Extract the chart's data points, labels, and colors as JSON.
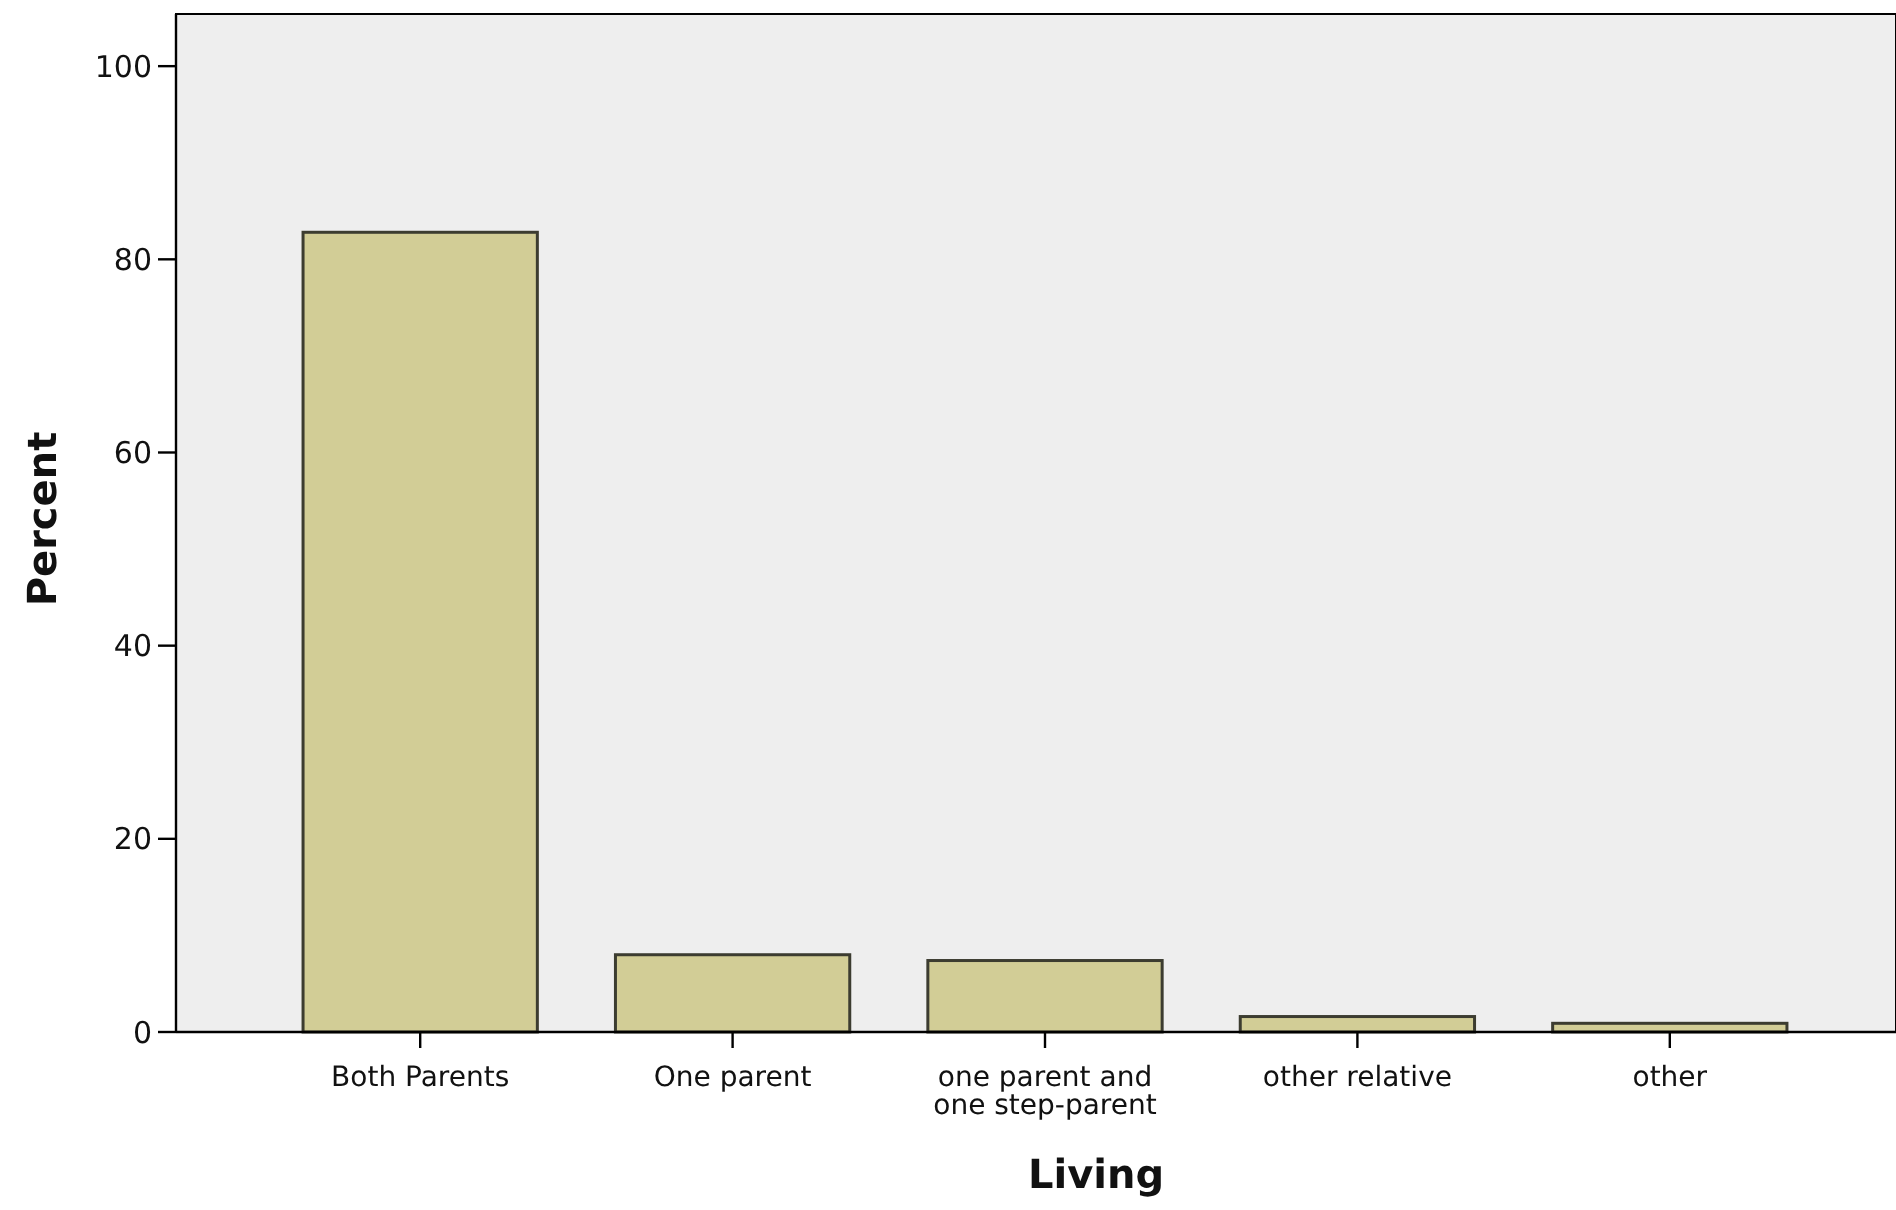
{
  "chart_data": {
    "type": "bar",
    "xlabel": "Living",
    "ylabel": "Percent",
    "categories": [
      "Both Parents",
      "One parent",
      "one parent and\none step-parent",
      "other relative",
      "other"
    ],
    "values": [
      82.8,
      8.0,
      7.4,
      1.6,
      0.9
    ],
    "color": "#d2cd96",
    "ylim": [
      0,
      105.4
    ],
    "yticks": [
      0,
      20,
      40,
      60,
      80,
      100
    ]
  }
}
